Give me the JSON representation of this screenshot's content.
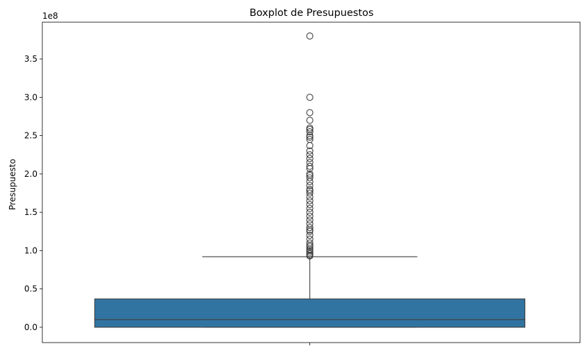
{
  "chart_data": {
    "type": "boxplot",
    "title": "Boxplot de Presupuestos",
    "xlabel": "",
    "ylabel": "Presupuesto",
    "offset_label": "1e8",
    "ylim": [
      -20000000,
      398000000
    ],
    "yticks": [
      0,
      50000000,
      100000000,
      150000000,
      200000000,
      250000000,
      300000000,
      350000000
    ],
    "ytick_labels": [
      "0.0",
      "0.5",
      "1.0",
      "1.5",
      "2.0",
      "2.5",
      "3.0",
      "3.5"
    ],
    "box": {
      "whisker_low": 0,
      "q1": 0,
      "median": 10000000,
      "q3": 37000000,
      "whisker_high": 92000000,
      "color": "#3274a1"
    },
    "outliers": [
      380000000,
      300000000,
      280000000,
      270000000,
      260000000,
      258000000,
      255000000,
      250000000,
      248000000,
      245000000,
      237000000,
      230000000,
      225000000,
      220000000,
      215000000,
      210000000,
      207000000,
      200000000,
      198000000,
      195000000,
      190000000,
      185000000,
      180000000,
      178000000,
      175000000,
      170000000,
      165000000,
      160000000,
      155000000,
      150000000,
      145000000,
      140000000,
      135000000,
      130000000,
      127000000,
      125000000,
      120000000,
      115000000,
      110000000,
      107000000,
      105000000,
      102000000,
      100000000,
      98000000,
      96000000,
      94000000,
      93000000
    ],
    "grid": false
  }
}
